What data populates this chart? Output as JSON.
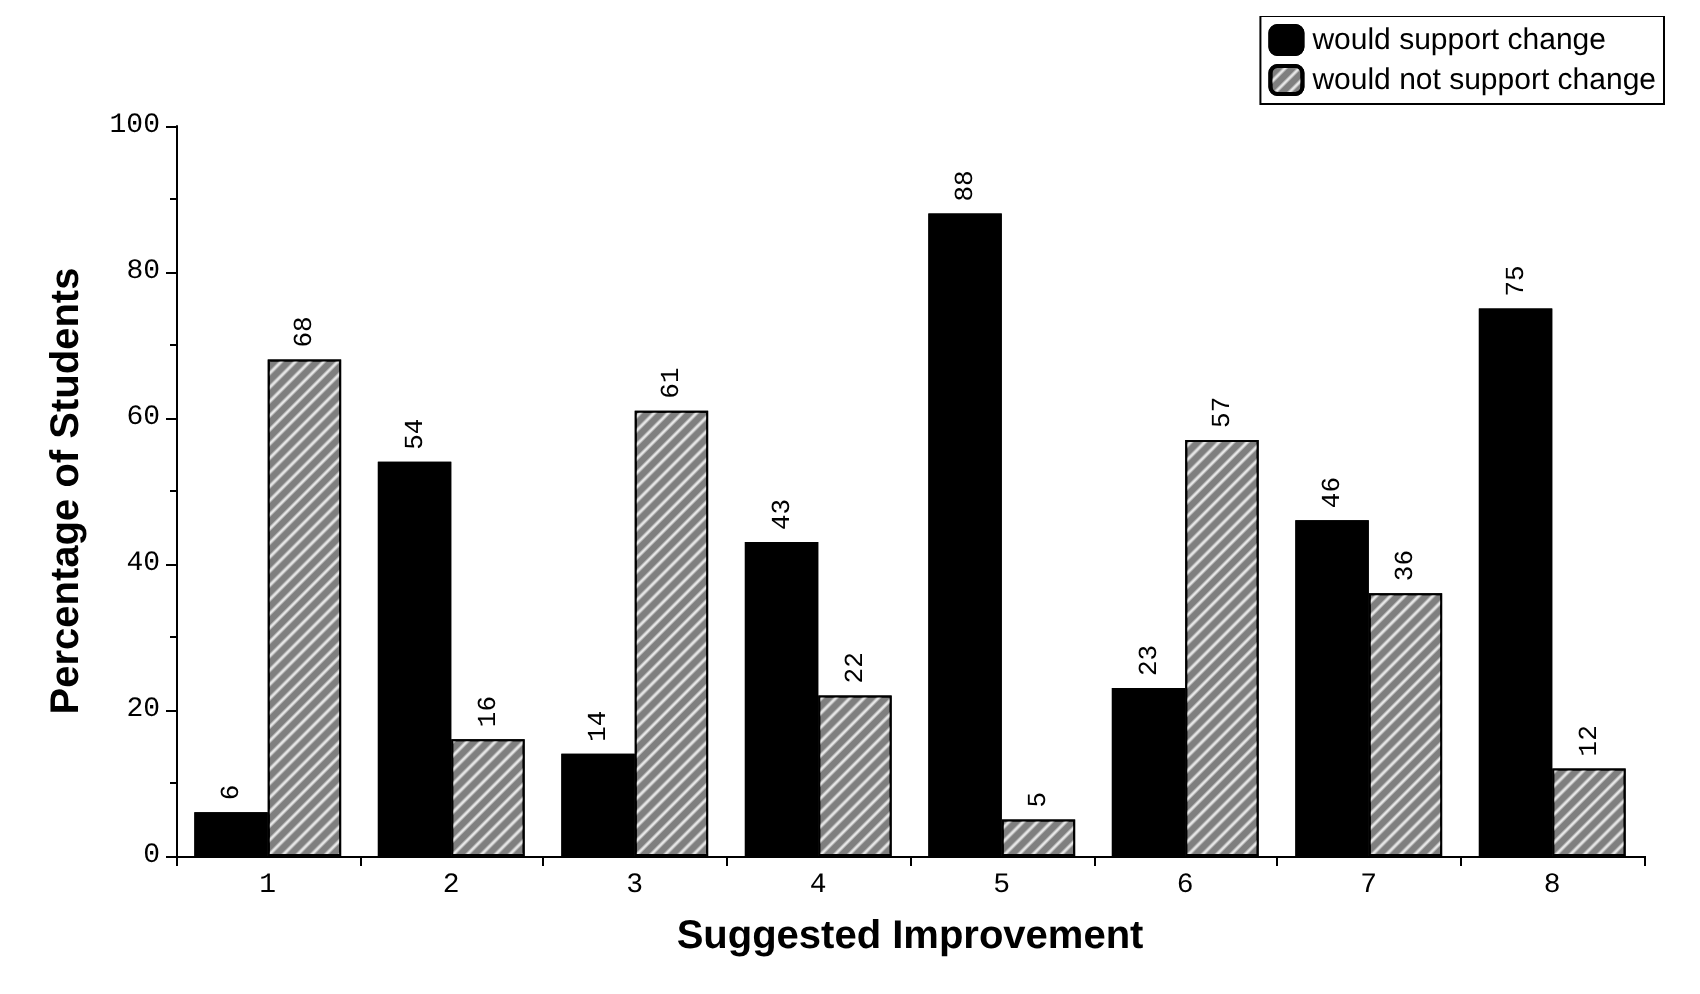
{
  "chart_data": {
    "type": "bar",
    "xlabel": "Suggested Improvement",
    "ylabel": "Percentage of Students",
    "categories": [
      "1",
      "2",
      "3",
      "4",
      "5",
      "6",
      "7",
      "8"
    ],
    "series": [
      {
        "name": "would support change",
        "color": "#000000",
        "values": [
          6,
          54,
          14,
          43,
          88,
          23,
          46,
          75
        ]
      },
      {
        "name": "would not support change",
        "color": "#7f7f7f",
        "values": [
          68,
          16,
          61,
          22,
          5,
          57,
          36,
          12
        ]
      }
    ],
    "ylim": [
      0,
      100
    ],
    "yticks": [
      0,
      20,
      40,
      60,
      80,
      100
    ],
    "grid": false,
    "legend": "top right",
    "data_labels": true
  }
}
